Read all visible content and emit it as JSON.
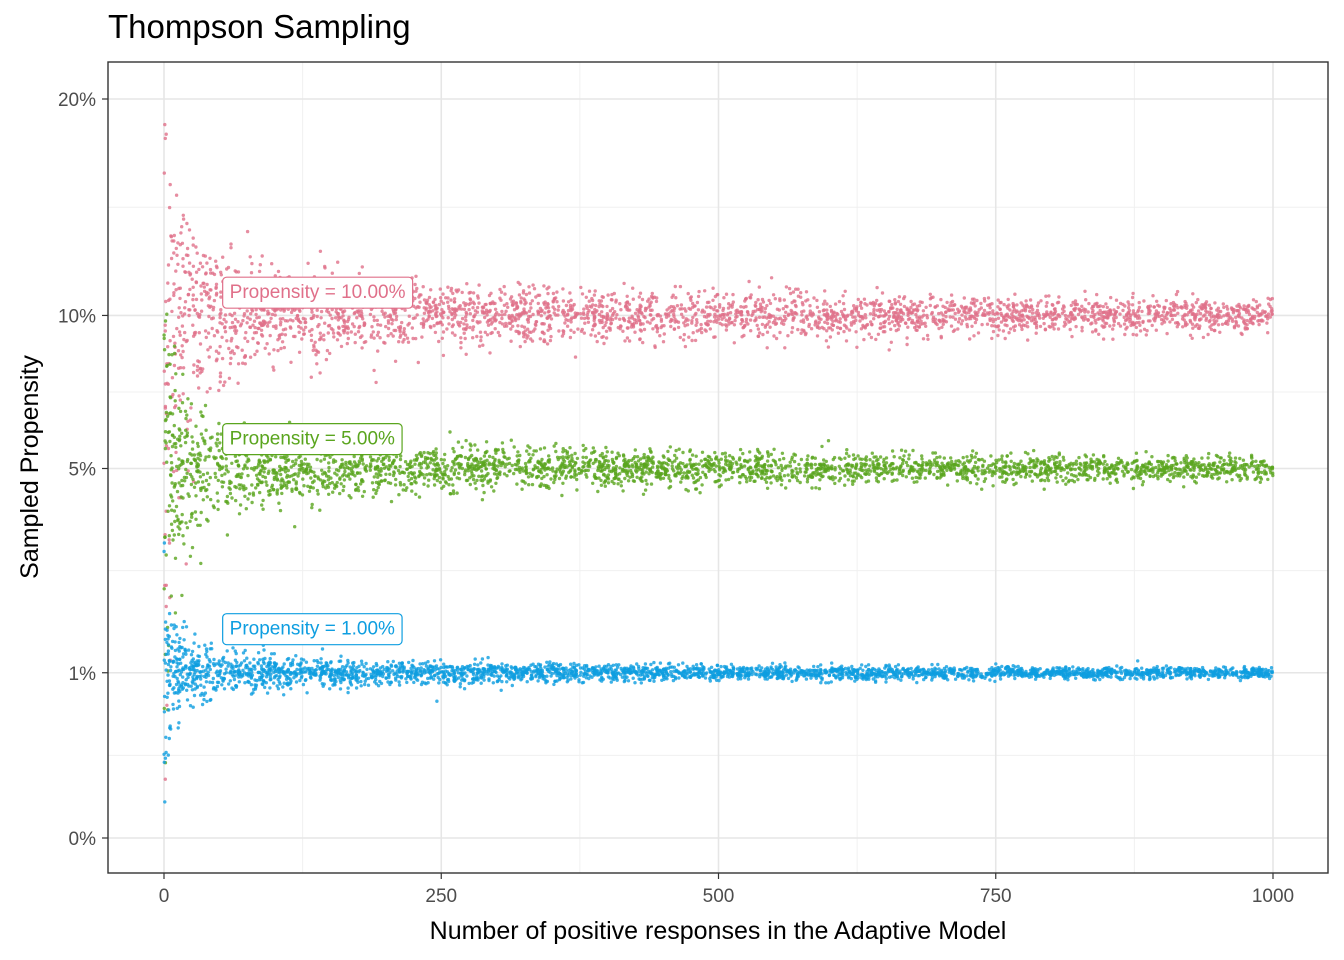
{
  "chart_data": {
    "type": "scatter",
    "title": "Thompson Sampling",
    "xlabel": "Number of positive responses in the Adaptive Model",
    "ylabel": "Sampled Propensity",
    "xlim": [
      -25,
      1025
    ],
    "ylim": [
      -0.01,
      0.21
    ],
    "y_scale": "sqrt",
    "grid": true,
    "x_ticks": [
      0,
      250,
      500,
      750,
      1000
    ],
    "x_tick_labels": [
      "0",
      "250",
      "500",
      "750",
      "1000"
    ],
    "y_ticks": [
      0,
      0.01,
      0.05,
      0.1,
      0.2
    ],
    "y_tick_labels": [
      "0%",
      "1%",
      "5%",
      "10%",
      "20%"
    ],
    "series": [
      {
        "propensity": 0.1,
        "color": "#e0708a",
        "x_range": [
          0,
          1000
        ],
        "approx_spread_at": [
          [
            5,
            0.04
          ],
          [
            50,
            0.018
          ],
          [
            250,
            0.009
          ],
          [
            1000,
            0.005
          ]
        ]
      },
      {
        "propensity": 0.05,
        "color": "#5aa51e",
        "x_range": [
          0,
          1000
        ],
        "approx_spread_at": [
          [
            5,
            0.03
          ],
          [
            50,
            0.012
          ],
          [
            250,
            0.006
          ],
          [
            1000,
            0.003
          ]
        ]
      },
      {
        "propensity": 0.01,
        "color": "#0e9ee0",
        "x_range": [
          0,
          1000
        ],
        "approx_spread_at": [
          [
            5,
            0.008
          ],
          [
            50,
            0.003
          ],
          [
            250,
            0.0015
          ],
          [
            1000,
            0.0006
          ]
        ]
      }
    ],
    "annotations": [
      {
        "text": "Propensity = 10.00%",
        "color": "#e0708a",
        "at_x": 52,
        "at_y": 0.1095
      },
      {
        "text": "Propensity = 5.00%",
        "color": "#5aa51e",
        "at_x": 52,
        "at_y": 0.0587
      },
      {
        "text": "Propensity = 1.00%",
        "color": "#0e9ee0",
        "at_x": 52,
        "at_y": 0.0162
      }
    ]
  }
}
